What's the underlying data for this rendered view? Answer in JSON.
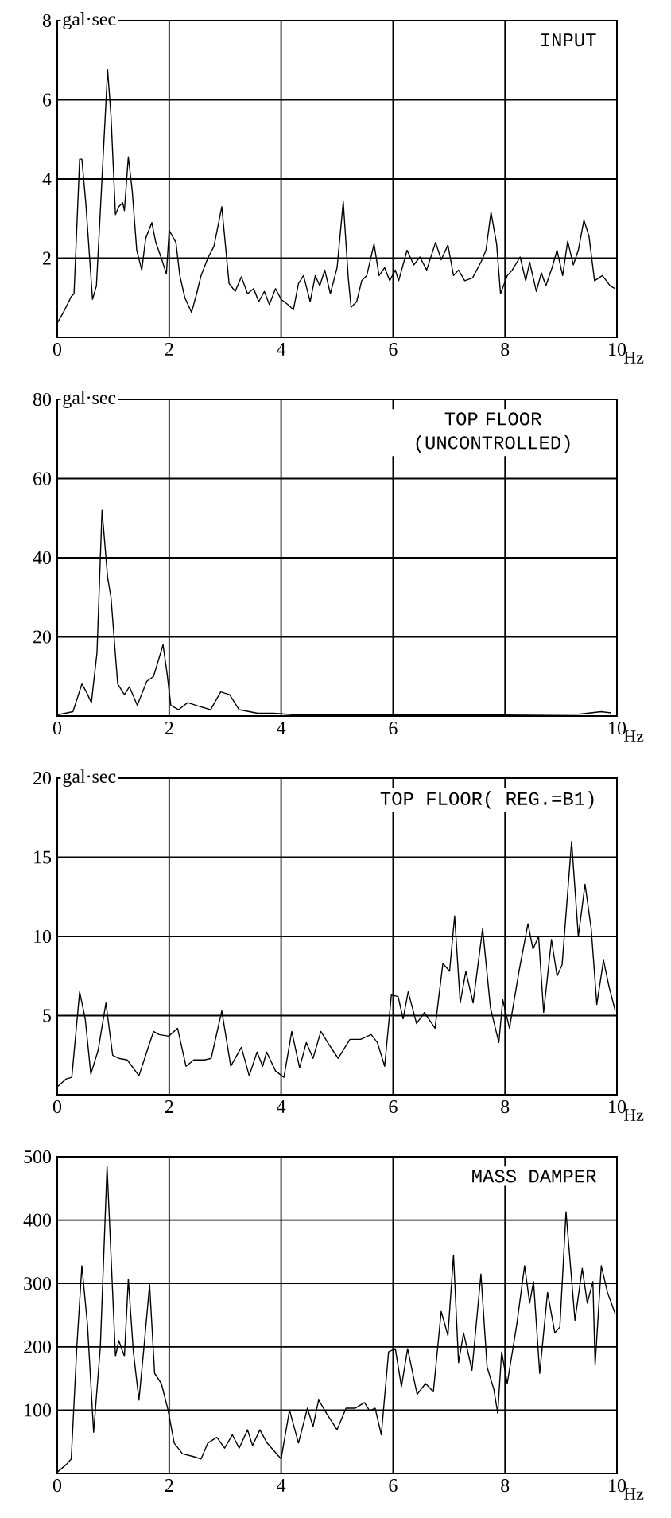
{
  "chart_data": [
    {
      "type": "line",
      "title": "INPUT",
      "xlabel": "Hz",
      "ylabel": "gal·sec",
      "color": "#000000",
      "grid": true,
      "xlim": [
        0,
        10
      ],
      "ylim": [
        0,
        8
      ],
      "xticks": [
        0,
        2,
        4,
        6,
        8,
        10
      ],
      "yticks": [
        2,
        4,
        6,
        8
      ],
      "x": [
        0,
        0.11,
        0.25,
        0.3,
        0.4,
        0.44,
        0.51,
        0.63,
        0.7,
        0.77,
        0.9,
        0.96,
        1.04,
        1.1,
        1.17,
        1.2,
        1.27,
        1.34,
        1.42,
        1.51,
        1.58,
        1.69,
        1.76,
        1.86,
        1.95,
        2.0,
        2.12,
        2.19,
        2.28,
        2.4,
        2.49,
        2.57,
        2.69,
        2.8,
        2.94,
        3.07,
        3.18,
        3.29,
        3.4,
        3.51,
        3.6,
        3.7,
        3.79,
        3.9,
        4.0,
        4.12,
        4.22,
        4.31,
        4.4,
        4.52,
        4.61,
        4.69,
        4.78,
        4.88,
        5.0,
        5.11,
        5.2,
        5.25,
        5.35,
        5.44,
        5.53,
        5.66,
        5.75,
        5.85,
        5.94,
        6.04,
        6.1,
        6.25,
        6.37,
        6.48,
        6.6,
        6.76,
        6.86,
        6.98,
        7.08,
        7.17,
        7.28,
        7.42,
        7.57,
        7.66,
        7.75,
        7.85,
        7.92,
        8.04,
        8.13,
        8.27,
        8.37,
        8.44,
        8.56,
        8.65,
        8.73,
        8.84,
        8.93,
        9.03,
        9.12,
        9.22,
        9.31,
        9.41,
        9.5,
        9.6,
        9.74,
        9.88,
        9.97
      ],
      "values": [
        0.36,
        0.63,
        1.03,
        1.1,
        4.5,
        4.5,
        3.4,
        0.96,
        1.3,
        3.2,
        6.76,
        5.6,
        3.1,
        3.3,
        3.4,
        3.2,
        4.56,
        3.7,
        2.2,
        1.7,
        2.5,
        2.9,
        2.4,
        2.0,
        1.6,
        2.7,
        2.4,
        1.56,
        1.0,
        0.63,
        1.1,
        1.56,
        2.0,
        2.3,
        3.3,
        1.36,
        1.16,
        1.53,
        1.1,
        1.23,
        0.9,
        1.16,
        0.83,
        1.23,
        0.96,
        0.83,
        0.7,
        1.36,
        1.56,
        0.9,
        1.56,
        1.3,
        1.7,
        1.1,
        1.76,
        3.43,
        1.5,
        0.76,
        0.9,
        1.43,
        1.56,
        2.36,
        1.56,
        1.76,
        1.43,
        1.7,
        1.43,
        2.2,
        1.83,
        2.03,
        1.7,
        2.4,
        1.96,
        2.33,
        1.56,
        1.7,
        1.43,
        1.5,
        1.9,
        2.2,
        3.16,
        2.36,
        1.1,
        1.56,
        1.7,
        2.03,
        1.43,
        1.9,
        1.16,
        1.63,
        1.3,
        1.76,
        2.2,
        1.56,
        2.43,
        1.83,
        2.2,
        2.96,
        2.56,
        1.43,
        1.56,
        1.3,
        1.23
      ]
    },
    {
      "type": "line",
      "title": "TOP FLOOR (UNCONTROLLED)",
      "xlabel": "Hz",
      "ylabel": "gal·sec",
      "color": "#000000",
      "grid": true,
      "xlim": [
        0,
        10
      ],
      "ylim": [
        0,
        80
      ],
      "xticks": [
        0,
        2,
        4,
        6,
        {
          "value": 8,
          "label": null
        },
        10
      ],
      "yticks": [
        20,
        40,
        60,
        80
      ],
      "x": [
        0,
        0.28,
        0.44,
        0.52,
        0.61,
        0.71,
        0.8,
        0.9,
        0.96,
        1.08,
        1.2,
        1.29,
        1.43,
        1.6,
        1.72,
        1.89,
        1.96,
        2.03,
        2.17,
        2.33,
        2.55,
        2.74,
        2.92,
        3.08,
        3.25,
        3.58,
        3.87,
        4.25,
        5.57,
        7.45,
        9.34,
        9.72,
        9.9
      ],
      "values": [
        0.3,
        1.1,
        8.1,
        6.1,
        3.4,
        16,
        52,
        35,
        30,
        8.1,
        5.4,
        7.4,
        2.7,
        8.8,
        10,
        18,
        11,
        2.7,
        1.6,
        3.4,
        2.4,
        1.6,
        6.1,
        5.4,
        1.6,
        0.7,
        0.7,
        0.3,
        0.3,
        0.3,
        0.5,
        1.1,
        0.8
      ]
    },
    {
      "type": "line",
      "title": "TOP FLOOR( REG.=B1)",
      "xlabel": "Hz",
      "ylabel": "gal·sec",
      "color": "#000000",
      "grid": true,
      "xlim": [
        0,
        10
      ],
      "ylim": [
        0,
        20
      ],
      "xticks": [
        0,
        2,
        4,
        6,
        8,
        10
      ],
      "yticks": [
        5,
        10,
        15,
        20
      ],
      "x": [
        0,
        0.16,
        0.26,
        0.4,
        0.5,
        0.6,
        0.73,
        0.87,
        0.99,
        1.1,
        1.25,
        1.46,
        1.58,
        1.72,
        1.82,
        1.99,
        2.15,
        2.3,
        2.44,
        2.63,
        2.75,
        2.94,
        3.1,
        3.29,
        3.43,
        3.57,
        3.67,
        3.74,
        3.9,
        4.05,
        4.19,
        4.33,
        4.45,
        4.57,
        4.71,
        4.85,
        5.02,
        5.23,
        5.42,
        5.61,
        5.72,
        5.85,
        5.97,
        6.09,
        6.18,
        6.27,
        6.42,
        6.56,
        6.75,
        6.89,
        7.01,
        7.1,
        7.2,
        7.3,
        7.43,
        7.6,
        7.74,
        7.89,
        7.96,
        8.08,
        8.25,
        8.41,
        8.5,
        8.6,
        8.69,
        8.83,
        8.93,
        9.02,
        9.19,
        9.31,
        9.43,
        9.54,
        9.64,
        9.76,
        9.86,
        9.97
      ],
      "values": [
        0.5,
        1.0,
        1.1,
        6.5,
        4.8,
        1.3,
        2.8,
        5.8,
        2.5,
        2.3,
        2.2,
        1.2,
        2.5,
        4.0,
        3.8,
        3.7,
        4.2,
        1.8,
        2.2,
        2.2,
        2.3,
        5.3,
        1.8,
        3.0,
        1.2,
        2.7,
        1.8,
        2.7,
        1.5,
        1.1,
        4.0,
        1.7,
        3.3,
        2.3,
        4.0,
        3.2,
        2.3,
        3.5,
        3.5,
        3.8,
        3.3,
        1.8,
        6.3,
        6.2,
        4.8,
        6.5,
        4.5,
        5.2,
        4.2,
        8.3,
        7.8,
        11.3,
        5.8,
        7.8,
        5.8,
        10.5,
        5.5,
        3.3,
        6.0,
        4.2,
        7.8,
        10.8,
        9.2,
        10,
        5.2,
        9.8,
        7.5,
        8.2,
        16,
        10,
        13.3,
        10.5,
        5.7,
        8.5,
        6.8,
        5.3
      ]
    },
    {
      "type": "line",
      "title": "MASS DAMPER",
      "xlabel": "Hz",
      "color": "#000000",
      "grid": true,
      "xlim": [
        0,
        10
      ],
      "ylim": [
        0,
        500
      ],
      "xticks": [
        0,
        2,
        4,
        6,
        8,
        10
      ],
      "yticks": [
        100,
        200,
        300,
        400,
        500
      ],
      "x": [
        0,
        0.16,
        0.25,
        0.35,
        0.44,
        0.54,
        0.65,
        0.77,
        0.89,
        0.96,
        1.04,
        1.1,
        1.2,
        1.27,
        1.36,
        1.46,
        1.55,
        1.65,
        1.74,
        1.86,
        1.98,
        2.09,
        2.24,
        2.42,
        2.57,
        2.69,
        2.85,
        2.99,
        3.13,
        3.25,
        3.4,
        3.49,
        3.62,
        3.75,
        4.0,
        4.15,
        4.31,
        4.47,
        4.57,
        4.67,
        4.81,
        5.0,
        5.16,
        5.32,
        5.49,
        5.58,
        5.68,
        5.79,
        5.92,
        6.04,
        6.15,
        6.26,
        6.43,
        6.58,
        6.72,
        6.86,
        6.98,
        7.08,
        7.17,
        7.26,
        7.41,
        7.57,
        7.68,
        7.8,
        7.87,
        7.94,
        8.04,
        8.21,
        8.35,
        8.44,
        8.51,
        8.62,
        8.76,
        8.89,
        8.98,
        9.09,
        9.25,
        9.38,
        9.47,
        9.57,
        9.61,
        9.72,
        9.83,
        9.97
      ],
      "values": [
        2,
        14,
        23,
        200,
        328,
        235,
        65,
        200,
        485,
        345,
        185,
        210,
        185,
        307,
        192,
        116,
        200,
        298,
        158,
        142,
        100,
        48,
        31,
        27,
        23,
        48,
        57,
        40,
        61,
        40,
        69,
        44,
        69,
        48,
        23,
        100,
        48,
        103,
        74,
        116,
        95,
        69,
        103,
        103,
        112,
        99,
        103,
        61,
        192,
        197,
        137,
        197,
        125,
        142,
        129,
        256,
        218,
        345,
        175,
        222,
        163,
        315,
        168,
        133,
        95,
        192,
        142,
        235,
        328,
        269,
        303,
        158,
        286,
        222,
        231,
        413,
        242,
        324,
        269,
        303,
        171,
        328,
        286,
        252
      ]
    }
  ]
}
